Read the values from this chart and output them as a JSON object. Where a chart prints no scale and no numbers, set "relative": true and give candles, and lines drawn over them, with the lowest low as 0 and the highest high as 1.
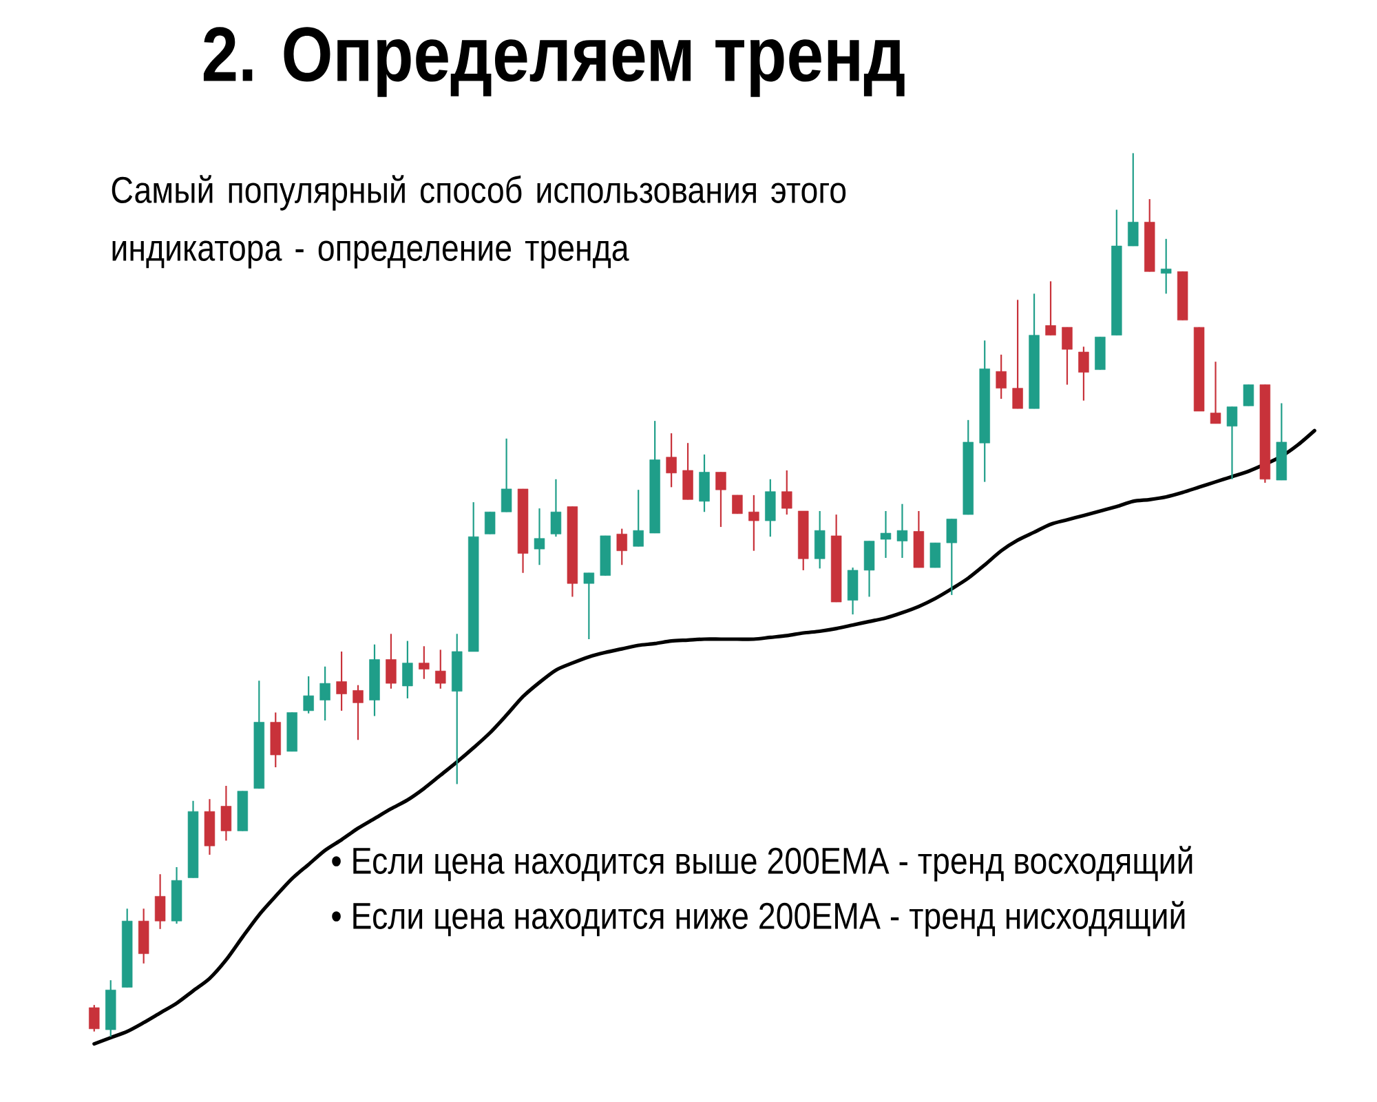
{
  "chart_data": {
    "type": "candlestick",
    "title": "2. Определяем тренд",
    "annotations": [
      "Самый популярный способ использования этого индикатора - определение тренда",
      "• Если цена находится выше 200EMA - тренд восходящий",
      "• Если цена находится ниже 200EMA - тренд нисходящий"
    ],
    "relative": true,
    "categories": [
      null,
      null,
      null,
      null,
      null,
      null,
      null,
      null,
      null,
      null,
      null,
      null,
      null,
      null,
      null,
      null,
      null,
      null,
      null,
      null,
      null,
      null,
      null,
      null,
      null,
      null,
      null,
      null,
      null,
      null,
      null,
      null,
      null,
      null,
      null,
      null,
      null,
      null,
      null,
      null,
      null,
      null,
      null,
      null,
      null,
      null,
      null,
      null,
      null,
      null,
      null,
      null,
      null,
      null,
      null,
      null,
      null,
      null,
      null,
      null,
      null,
      null,
      null,
      null,
      null,
      null,
      null,
      null,
      null,
      null,
      null,
      null,
      null,
      null,
      null
    ],
    "series": [
      {
        "type": "line",
        "color": "#000000",
        "values": [
          -0.008,
          -0.001,
          0.006,
          0.016,
          0.027,
          0.038,
          0.052,
          0.066,
          0.087,
          0.113,
          0.138,
          0.159,
          0.179,
          0.195,
          0.211,
          0.223,
          0.236,
          0.247,
          0.258,
          0.268,
          0.281,
          0.296,
          0.311,
          0.327,
          0.344,
          0.364,
          0.385,
          0.401,
          0.415,
          0.423,
          0.43,
          0.435,
          0.439,
          0.443,
          0.445,
          0.448,
          0.449,
          0.45,
          0.45,
          0.45,
          0.45,
          0.452,
          0.454,
          0.457,
          0.459,
          0.462,
          0.466,
          0.47,
          0.474,
          0.48,
          0.487,
          0.496,
          0.507,
          0.519,
          0.534,
          0.55,
          0.562,
          0.571,
          0.58,
          0.585,
          0.59,
          0.595,
          0.6,
          0.606,
          0.608,
          0.611,
          0.616,
          0.622,
          0.628,
          0.634,
          0.64,
          0.648,
          0.657,
          0.67,
          0.686
        ]
      },
      {
        "ohlc": [
          [
            0.033,
            0.036,
            0.006,
            0.009
          ],
          [
            0.008,
            0.064,
            0,
            0.053
          ],
          [
            0.056,
            0.145,
            0.056,
            0.131
          ],
          [
            0.131,
            0.145,
            0.083,
            0.094
          ],
          [
            0.159,
            0.184,
            0.122,
            0.131
          ],
          [
            0.131,
            0.192,
            0.128,
            0.177
          ],
          [
            0.18,
            0.267,
            0.18,
            0.255
          ],
          [
            0.255,
            0.269,
            0.206,
            0.216
          ],
          [
            0.261,
            0.284,
            0.222,
            0.233
          ],
          [
            0.233,
            0.278,
            0.233,
            0.278
          ],
          [
            0.281,
            0.403,
            0.281,
            0.356
          ],
          [
            0.356,
            0.367,
            0.305,
            0.319
          ],
          [
            0.323,
            0.367,
            0.323,
            0.367
          ],
          [
            0.369,
            0.408,
            0.366,
            0.386
          ],
          [
            0.381,
            0.419,
            0.358,
            0.4
          ],
          [
            0.402,
            0.436,
            0.369,
            0.388
          ],
          [
            0.392,
            0.398,
            0.336,
            0.378
          ],
          [
            0.381,
            0.444,
            0.363,
            0.427
          ],
          [
            0.427,
            0.456,
            0.394,
            0.4
          ],
          [
            0.397,
            0.448,
            0.383,
            0.423
          ],
          [
            0.423,
            0.442,
            0.405,
            0.416
          ],
          [
            0.414,
            0.438,
            0.394,
            0.4
          ],
          [
            0.391,
            0.456,
            0.286,
            0.436
          ],
          [
            0.436,
            0.605,
            0.436,
            0.566
          ],
          [
            0.569,
            0.594,
            0.569,
            0.594
          ],
          [
            0.594,
            0.677,
            0.594,
            0.62
          ],
          [
            0.62,
            0.62,
            0.525,
            0.547
          ],
          [
            0.552,
            0.598,
            0.534,
            0.564
          ],
          [
            0.569,
            0.631,
            0.566,
            0.594
          ],
          [
            0.6,
            0.6,
            0.498,
            0.513
          ],
          [
            0.513,
            0.525,
            0.45,
            0.525
          ],
          [
            0.522,
            0.567,
            0.522,
            0.567
          ],
          [
            0.569,
            0.575,
            0.534,
            0.55
          ],
          [
            0.555,
            0.619,
            0.555,
            0.573
          ],
          [
            0.57,
            0.697,
            0.57,
            0.653
          ],
          [
            0.656,
            0.683,
            0.622,
            0.638
          ],
          [
            0.641,
            0.672,
            0.608,
            0.608
          ],
          [
            0.606,
            0.659,
            0.594,
            0.639
          ],
          [
            0.639,
            0.639,
            0.577,
            0.619
          ],
          [
            0.613,
            0.613,
            0.592,
            0.592
          ],
          [
            0.594,
            0.613,
            0.55,
            0.584
          ],
          [
            0.584,
            0.631,
            0.566,
            0.617
          ],
          [
            0.617,
            0.641,
            0.591,
            0.598
          ],
          [
            0.595,
            0.595,
            0.528,
            0.541
          ],
          [
            0.541,
            0.595,
            0.53,
            0.573
          ],
          [
            0.567,
            0.591,
            0.492,
            0.492
          ],
          [
            0.494,
            0.531,
            0.478,
            0.528
          ],
          [
            0.528,
            0.561,
            0.498,
            0.561
          ],
          [
            0.563,
            0.595,
            0.542,
            0.57
          ],
          [
            0.561,
            0.603,
            0.542,
            0.573
          ],
          [
            0.572,
            0.595,
            0.531,
            0.531
          ],
          [
            0.531,
            0.559,
            0.531,
            0.559
          ],
          [
            0.559,
            0.586,
            0.5,
            0.586
          ],
          [
            0.591,
            0.698,
            0.591,
            0.673
          ],
          [
            0.672,
            0.788,
            0.628,
            0.756
          ],
          [
            0.753,
            0.772,
            0.722,
            0.734
          ],
          [
            0.734,
            0.834,
            0.711,
            0.711
          ],
          [
            0.711,
            0.841,
            0.711,
            0.794
          ],
          [
            0.805,
            0.855,
            0.794,
            0.794
          ],
          [
            0.803,
            0.803,
            0.738,
            0.778
          ],
          [
            0.775,
            0.781,
            0.72,
            0.752
          ],
          [
            0.755,
            0.792,
            0.755,
            0.792
          ],
          [
            0.794,
            0.936,
            0.794,
            0.895
          ],
          [
            0.895,
            1,
            0.895,
            0.922
          ],
          [
            0.922,
            0.948,
            0.866,
            0.866
          ],
          [
            0.864,
            0.903,
            0.841,
            0.869
          ],
          [
            0.866,
            0.866,
            0.811,
            0.811
          ],
          [
            0.803,
            0.803,
            0.708,
            0.708
          ],
          [
            0.706,
            0.764,
            0.694,
            0.694
          ],
          [
            0.691,
            0.713,
            0.631,
            0.713
          ],
          [
            0.714,
            0.738,
            0.714,
            0.738
          ],
          [
            0.738,
            0.738,
            0.627,
            0.631
          ],
          [
            0.63,
            0.717,
            0.63,
            0.673
          ],
          null,
          null
        ],
        "colors": [
          "#c8323a",
          "#1f9e89",
          "#1f9e89",
          "#c8323a",
          "#c8323a",
          "#1f9e89",
          "#1f9e89",
          "#c8323a",
          "#c8323a",
          "#1f9e89",
          "#1f9e89",
          "#c8323a",
          "#1f9e89",
          "#1f9e89",
          "#1f9e89",
          "#c8323a",
          "#c8323a",
          "#1f9e89",
          "#c8323a",
          "#1f9e89",
          "#c8323a",
          "#c8323a",
          "#1f9e89",
          "#1f9e89",
          "#1f9e89",
          "#1f9e89",
          "#c8323a",
          "#1f9e89",
          "#1f9e89",
          "#c8323a",
          "#1f9e89",
          "#1f9e89",
          "#c8323a",
          "#1f9e89",
          "#1f9e89",
          "#c8323a",
          "#c8323a",
          "#1f9e89",
          "#c8323a",
          "#c8323a",
          "#c8323a",
          "#1f9e89",
          "#c8323a",
          "#c8323a",
          "#1f9e89",
          "#c8323a",
          "#1f9e89",
          "#1f9e89",
          "#1f9e89",
          "#1f9e89",
          "#c8323a",
          "#1f9e89",
          "#1f9e89",
          "#1f9e89",
          "#1f9e89",
          "#c8323a",
          "#c8323a",
          "#1f9e89",
          "#c8323a",
          "#c8323a",
          "#c8323a",
          "#1f9e89",
          "#1f9e89",
          "#1f9e89",
          "#c8323a",
          "#1f9e89",
          "#c8323a",
          "#c8323a",
          "#c8323a",
          "#1f9e89",
          "#1f9e89",
          "#c8323a",
          "#1f9e89",
          null,
          null
        ]
      }
    ]
  }
}
